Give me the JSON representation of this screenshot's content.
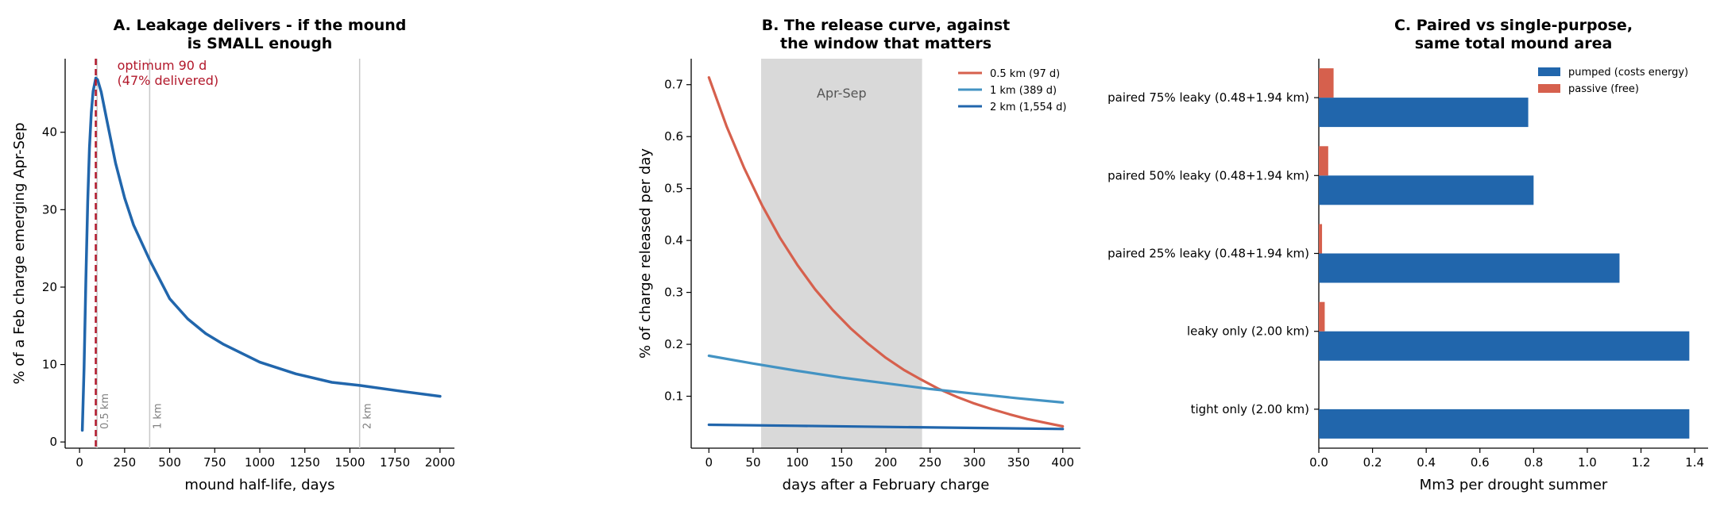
{
  "colors": {
    "dark_blue": "#2166ac",
    "mid_blue": "#4393c3",
    "red": "#d6604d",
    "optimum": "#b2182b",
    "window": "#d9d9d9",
    "ref_line": "#c8c8c8",
    "ref_text": "#808080",
    "axis": "#000000"
  },
  "chart_data": [
    {
      "type": "line",
      "title": "A. Leakage delivers - if the mound\nis SMALL enough",
      "xlabel": "mound half-life, days",
      "ylabel": "% of a Feb charge emerging Apr-Sep",
      "xlim": [
        -80,
        2080
      ],
      "ylim": [
        -0.8,
        49.5
      ],
      "xticks": [
        0,
        250,
        500,
        750,
        1000,
        1250,
        1500,
        1750,
        2000
      ],
      "yticks": [
        0,
        10,
        20,
        30,
        40
      ],
      "grid": false,
      "series": [
        {
          "color": "dark_blue",
          "x": [
            15,
            25,
            35,
            45,
            55,
            65,
            75,
            90,
            100,
            120,
            150,
            200,
            250,
            300,
            389,
            500,
            600,
            700,
            800,
            1000,
            1200,
            1400,
            1554,
            1800,
            2000
          ],
          "y": [
            1.5,
            9.5,
            21.0,
            31.0,
            38.0,
            42.5,
            45.3,
            47.0,
            46.8,
            45.2,
            41.7,
            36.0,
            31.5,
            28.0,
            23.5,
            18.5,
            15.9,
            14.0,
            12.6,
            10.3,
            8.8,
            7.7,
            7.3,
            6.5,
            5.9
          ]
        }
      ],
      "optimum": {
        "x": 90,
        "label": "optimum 90 d\n(47% delivered)"
      },
      "ref_lines": [
        {
          "x": 97,
          "label": "0.5 km"
        },
        {
          "x": 389,
          "label": "1 km"
        },
        {
          "x": 1554,
          "label": "2 km"
        }
      ]
    },
    {
      "type": "line",
      "title": "B. The release curve, against\nthe window that matters",
      "xlabel": "days after a February charge",
      "ylabel": "% of charge released per day",
      "xlim": [
        -20,
        420
      ],
      "ylim": [
        0.0,
        0.75
      ],
      "xticks": [
        0,
        50,
        100,
        150,
        200,
        250,
        300,
        350,
        400
      ],
      "yticks": [
        0.1,
        0.2,
        0.3,
        0.4,
        0.5,
        0.6,
        0.7
      ],
      "grid": false,
      "window": {
        "x": [
          59,
          241
        ],
        "label": "Apr-Sep"
      },
      "legend": "top-right",
      "series": [
        {
          "name": "0.5 km (97 d)",
          "color": "red",
          "x": [
            0,
            20,
            40,
            60,
            80,
            100,
            120,
            140,
            160,
            180,
            200,
            220,
            240,
            260,
            280,
            300,
            320,
            340,
            360,
            380,
            400
          ],
          "y": [
            0.714,
            0.62,
            0.539,
            0.468,
            0.406,
            0.353,
            0.306,
            0.266,
            0.231,
            0.201,
            0.174,
            0.151,
            0.132,
            0.114,
            0.099,
            0.086,
            0.075,
            0.065,
            0.056,
            0.049,
            0.042
          ]
        },
        {
          "name": "1 km (389 d)",
          "color": "mid_blue",
          "x": [
            0,
            50,
            100,
            150,
            200,
            250,
            300,
            350,
            400
          ],
          "y": [
            0.178,
            0.163,
            0.149,
            0.136,
            0.125,
            0.114,
            0.105,
            0.096,
            0.088
          ]
        },
        {
          "name": "2 km (1,554 d)",
          "color": "dark_blue",
          "x": [
            0,
            100,
            200,
            300,
            400
          ],
          "y": [
            0.045,
            0.043,
            0.041,
            0.039,
            0.037
          ]
        }
      ]
    },
    {
      "type": "bar",
      "orientation": "horizontal",
      "title": "C. Paired vs single-purpose,\nsame total mound area",
      "xlabel": "Mm3 per drought summer",
      "ylabel": "",
      "xlim": [
        0,
        1.45
      ],
      "xticks": [
        0.0,
        0.2,
        0.4,
        0.6,
        0.8,
        1.0,
        1.2,
        1.4
      ],
      "grid": false,
      "legend": "top-right",
      "categories": [
        "paired 75% leaky (0.48+1.94 km)",
        "paired 50% leaky (0.48+1.94 km)",
        "paired 25% leaky (0.48+1.94 km)",
        "leaky only (2.00 km)",
        "tight only (2.00 km)"
      ],
      "series": [
        {
          "name": "pumped (costs energy)",
          "color": "dark_blue",
          "values": [
            0.78,
            0.8,
            1.12,
            1.38,
            1.38
          ]
        },
        {
          "name": "passive (free)",
          "color": "red",
          "values": [
            0.055,
            0.035,
            0.012,
            0.022,
            0.0
          ]
        }
      ]
    }
  ]
}
